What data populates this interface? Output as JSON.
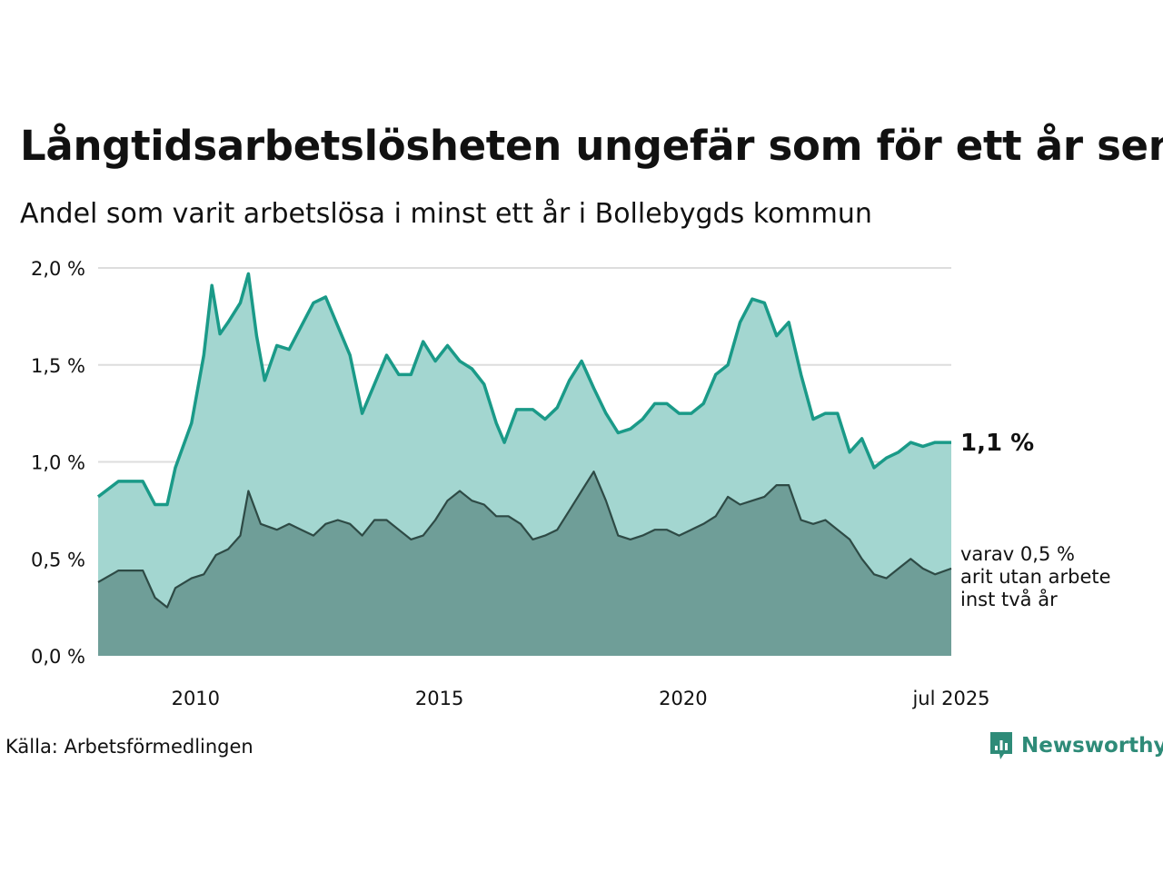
{
  "title": "Långtidsarbetslösheten ungefär som för ett år sen",
  "subtitle": "Andel som varit arbetslösa i minst ett år i Bollebygds kommun",
  "source": "Källa: Arbetsförmedlingen",
  "brand": "Newsworthy",
  "colors": {
    "main_line": "#1a9a88",
    "main_fill": "#a3d6d0",
    "sub_line": "#2e4a45",
    "sub_fill": "#6f9e98",
    "grid": "#dddddd",
    "text": "#111111",
    "brand": "#2e8b78"
  },
  "chart_data": {
    "type": "area",
    "x_start": "2008-01",
    "x_end": "2025-07",
    "x_unit": "month",
    "xlim": [
      "2008-01",
      "2025-07"
    ],
    "ylim": [
      0,
      2.0
    ],
    "y_ticks": [
      0,
      0.5,
      1.0,
      1.5,
      2.0
    ],
    "y_tick_labels": [
      "0,0 %",
      "0,5 %",
      "1,0 %",
      "1,5 %",
      "2,0 %"
    ],
    "x_ticks": [
      "2010-01",
      "2015-01",
      "2020-01",
      "2025-07"
    ],
    "x_tick_labels": [
      "2010",
      "2015",
      "2020",
      "jul 2025"
    ],
    "grid": true,
    "series": [
      {
        "end_label": "1,1 %",
        "color": "#1a9a88",
        "points": [
          [
            "2008-01",
            0.82
          ],
          [
            "2008-06",
            0.9
          ],
          [
            "2008-12",
            0.9
          ],
          [
            "2009-03",
            0.78
          ],
          [
            "2009-06",
            0.78
          ],
          [
            "2009-08",
            0.97
          ],
          [
            "2009-12",
            1.2
          ],
          [
            "2010-03",
            1.55
          ],
          [
            "2010-05",
            1.91
          ],
          [
            "2010-07",
            1.66
          ],
          [
            "2010-09",
            1.72
          ],
          [
            "2010-12",
            1.82
          ],
          [
            "2011-02",
            1.97
          ],
          [
            "2011-04",
            1.65
          ],
          [
            "2011-06",
            1.42
          ],
          [
            "2011-09",
            1.6
          ],
          [
            "2011-12",
            1.58
          ],
          [
            "2012-03",
            1.7
          ],
          [
            "2012-06",
            1.82
          ],
          [
            "2012-09",
            1.85
          ],
          [
            "2012-12",
            1.7
          ],
          [
            "2013-03",
            1.55
          ],
          [
            "2013-06",
            1.25
          ],
          [
            "2013-09",
            1.4
          ],
          [
            "2013-12",
            1.55
          ],
          [
            "2014-03",
            1.45
          ],
          [
            "2014-06",
            1.45
          ],
          [
            "2014-09",
            1.62
          ],
          [
            "2014-12",
            1.52
          ],
          [
            "2015-03",
            1.6
          ],
          [
            "2015-06",
            1.52
          ],
          [
            "2015-09",
            1.48
          ],
          [
            "2015-12",
            1.4
          ],
          [
            "2016-03",
            1.2
          ],
          [
            "2016-05",
            1.1
          ],
          [
            "2016-08",
            1.27
          ],
          [
            "2016-12",
            1.27
          ],
          [
            "2017-03",
            1.22
          ],
          [
            "2017-06",
            1.28
          ],
          [
            "2017-09",
            1.42
          ],
          [
            "2017-12",
            1.52
          ],
          [
            "2018-03",
            1.38
          ],
          [
            "2018-06",
            1.25
          ],
          [
            "2018-09",
            1.15
          ],
          [
            "2018-12",
            1.17
          ],
          [
            "2019-03",
            1.22
          ],
          [
            "2019-06",
            1.3
          ],
          [
            "2019-09",
            1.3
          ],
          [
            "2019-12",
            1.25
          ],
          [
            "2020-03",
            1.25
          ],
          [
            "2020-06",
            1.3
          ],
          [
            "2020-09",
            1.45
          ],
          [
            "2020-12",
            1.5
          ],
          [
            "2021-03",
            1.72
          ],
          [
            "2021-06",
            1.84
          ],
          [
            "2021-09",
            1.82
          ],
          [
            "2021-12",
            1.65
          ],
          [
            "2022-03",
            1.72
          ],
          [
            "2022-06",
            1.45
          ],
          [
            "2022-09",
            1.22
          ],
          [
            "2022-12",
            1.25
          ],
          [
            "2023-03",
            1.25
          ],
          [
            "2023-06",
            1.05
          ],
          [
            "2023-09",
            1.12
          ],
          [
            "2023-12",
            0.97
          ],
          [
            "2024-03",
            1.02
          ],
          [
            "2024-06",
            1.05
          ],
          [
            "2024-09",
            1.1
          ],
          [
            "2024-12",
            1.08
          ],
          [
            "2025-03",
            1.1
          ],
          [
            "2025-07",
            1.1
          ]
        ]
      },
      {
        "end_label": "varav 0,5 % varit utan arbete minst två år",
        "color": "#2e4a45",
        "points": [
          [
            "2008-01",
            0.38
          ],
          [
            "2008-06",
            0.44
          ],
          [
            "2008-12",
            0.44
          ],
          [
            "2009-03",
            0.3
          ],
          [
            "2009-06",
            0.25
          ],
          [
            "2009-08",
            0.35
          ],
          [
            "2009-12",
            0.4
          ],
          [
            "2010-03",
            0.42
          ],
          [
            "2010-06",
            0.52
          ],
          [
            "2010-09",
            0.55
          ],
          [
            "2010-12",
            0.62
          ],
          [
            "2011-02",
            0.85
          ],
          [
            "2011-05",
            0.68
          ],
          [
            "2011-09",
            0.65
          ],
          [
            "2011-12",
            0.68
          ],
          [
            "2012-03",
            0.65
          ],
          [
            "2012-06",
            0.62
          ],
          [
            "2012-09",
            0.68
          ],
          [
            "2012-12",
            0.7
          ],
          [
            "2013-03",
            0.68
          ],
          [
            "2013-06",
            0.62
          ],
          [
            "2013-09",
            0.7
          ],
          [
            "2013-12",
            0.7
          ],
          [
            "2014-03",
            0.65
          ],
          [
            "2014-06",
            0.6
          ],
          [
            "2014-09",
            0.62
          ],
          [
            "2014-12",
            0.7
          ],
          [
            "2015-03",
            0.8
          ],
          [
            "2015-06",
            0.85
          ],
          [
            "2015-09",
            0.8
          ],
          [
            "2015-12",
            0.78
          ],
          [
            "2016-03",
            0.72
          ],
          [
            "2016-06",
            0.72
          ],
          [
            "2016-09",
            0.68
          ],
          [
            "2016-12",
            0.6
          ],
          [
            "2017-03",
            0.62
          ],
          [
            "2017-06",
            0.65
          ],
          [
            "2017-09",
            0.75
          ],
          [
            "2017-12",
            0.85
          ],
          [
            "2018-03",
            0.95
          ],
          [
            "2018-06",
            0.8
          ],
          [
            "2018-09",
            0.62
          ],
          [
            "2018-12",
            0.6
          ],
          [
            "2019-03",
            0.62
          ],
          [
            "2019-06",
            0.65
          ],
          [
            "2019-09",
            0.65
          ],
          [
            "2019-12",
            0.62
          ],
          [
            "2020-03",
            0.65
          ],
          [
            "2020-06",
            0.68
          ],
          [
            "2020-09",
            0.72
          ],
          [
            "2020-12",
            0.82
          ],
          [
            "2021-03",
            0.78
          ],
          [
            "2021-06",
            0.8
          ],
          [
            "2021-09",
            0.82
          ],
          [
            "2021-12",
            0.88
          ],
          [
            "2022-03",
            0.88
          ],
          [
            "2022-06",
            0.7
          ],
          [
            "2022-09",
            0.68
          ],
          [
            "2022-12",
            0.7
          ],
          [
            "2023-03",
            0.65
          ],
          [
            "2023-06",
            0.6
          ],
          [
            "2023-09",
            0.5
          ],
          [
            "2023-12",
            0.42
          ],
          [
            "2024-03",
            0.4
          ],
          [
            "2024-06",
            0.45
          ],
          [
            "2024-09",
            0.5
          ],
          [
            "2024-12",
            0.45
          ],
          [
            "2025-03",
            0.42
          ],
          [
            "2025-07",
            0.45
          ]
        ]
      }
    ]
  }
}
